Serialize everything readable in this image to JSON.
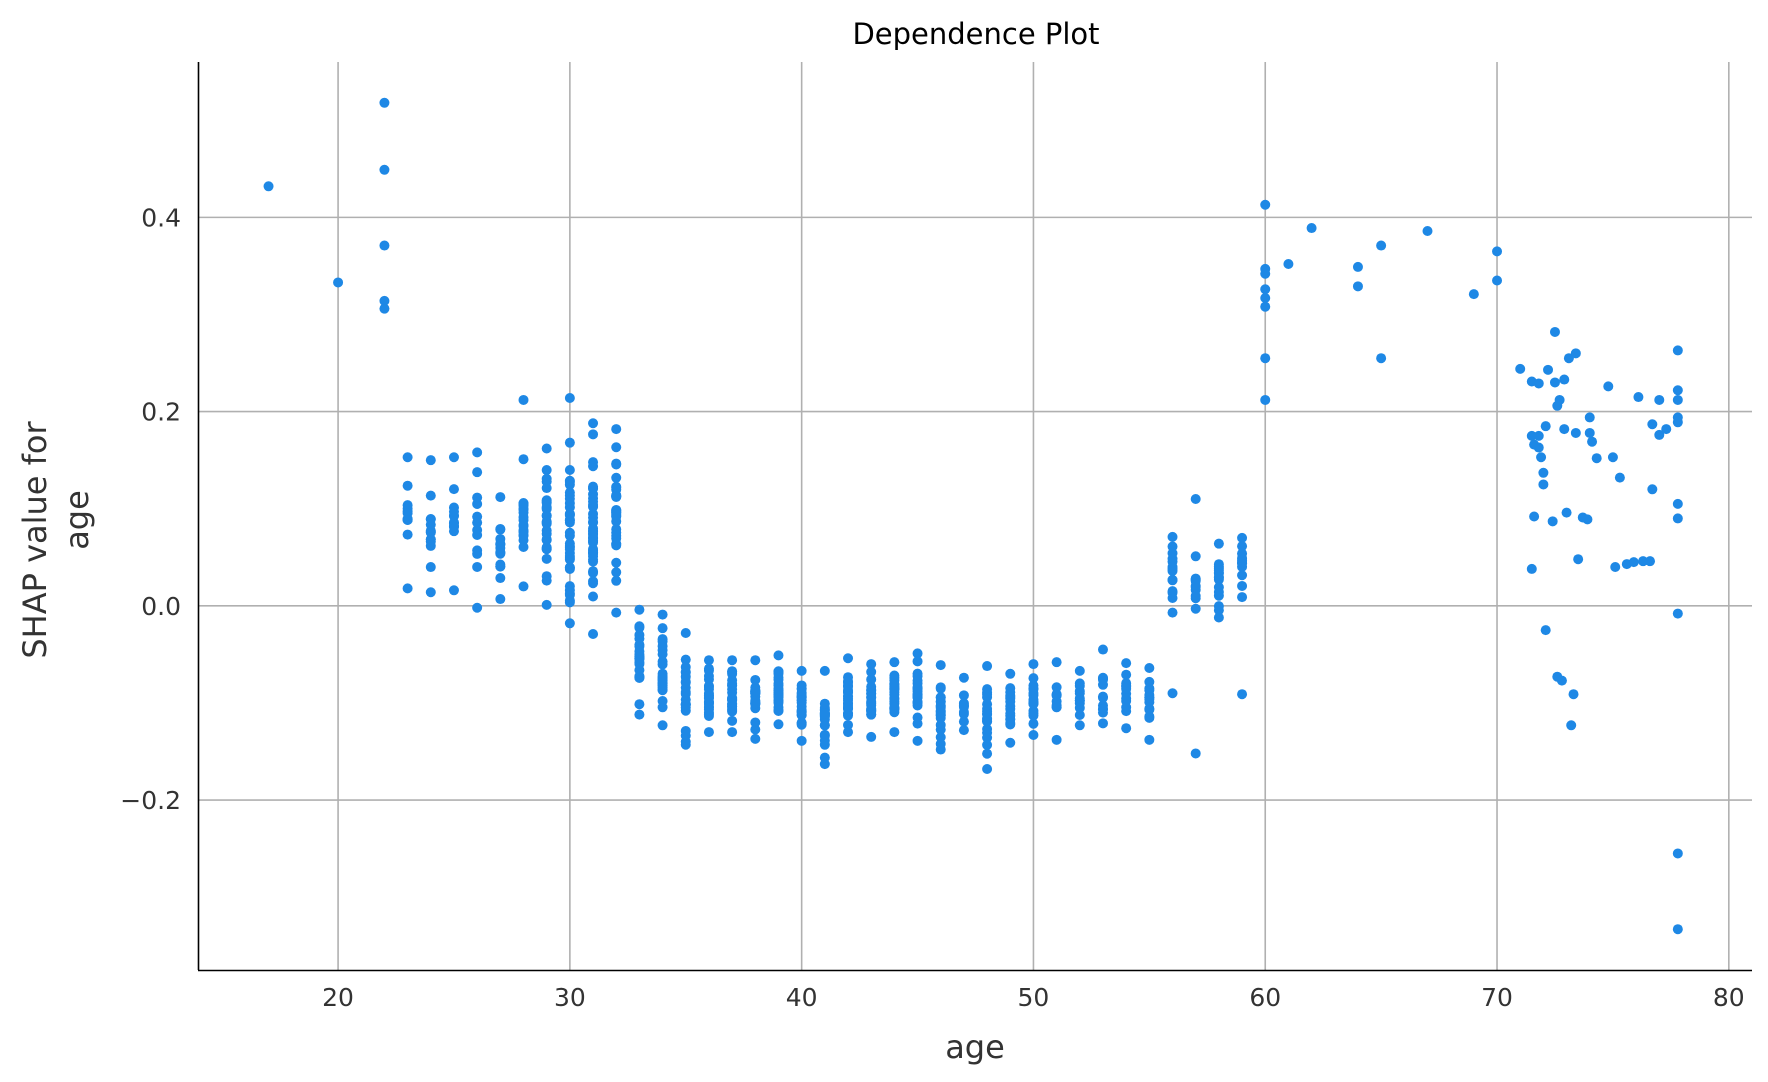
{
  "chart_data": {
    "type": "scatter",
    "title": "Dependence Plot",
    "xlabel": "age",
    "ylabel_lines": [
      "SHAP value for",
      "age"
    ],
    "xlim": [
      14,
      81
    ],
    "ylim": [
      -0.375,
      0.56
    ],
    "xticks": [
      20,
      30,
      40,
      50,
      60,
      70,
      80
    ],
    "xtick_labels": [
      "20",
      "30",
      "40",
      "50",
      "60",
      "70",
      "80"
    ],
    "yticks": [
      -0.2,
      0.0,
      0.2,
      0.4
    ],
    "ytick_labels": [
      "−0.2",
      "0.0",
      "0.2",
      "0.4"
    ],
    "grid": true,
    "point_color": "#1e88e5",
    "points_sparse": [
      [
        17,
        0.432
      ],
      [
        20,
        0.333
      ],
      [
        22,
        0.518
      ],
      [
        22,
        0.449
      ],
      [
        22,
        0.371
      ],
      [
        22,
        0.314
      ],
      [
        22,
        0.306
      ],
      [
        28,
        0.212
      ],
      [
        30,
        0.214
      ],
      [
        60,
        0.413
      ],
      [
        60,
        0.347
      ],
      [
        60,
        0.342
      ],
      [
        60,
        0.326
      ],
      [
        60,
        0.317
      ],
      [
        60,
        0.308
      ],
      [
        60,
        0.255
      ],
      [
        60,
        0.212
      ],
      [
        61,
        0.352
      ],
      [
        62,
        0.389
      ],
      [
        64,
        0.349
      ],
      [
        64,
        0.329
      ],
      [
        65,
        0.371
      ],
      [
        65,
        0.255
      ],
      [
        67,
        0.386
      ],
      [
        69,
        0.321
      ],
      [
        70,
        0.365
      ],
      [
        70,
        0.335
      ],
      [
        57,
        0.11
      ],
      [
        57,
        -0.152
      ],
      [
        56,
        -0.09
      ],
      [
        59,
        -0.091
      ],
      [
        71,
        0.244
      ],
      [
        71.5,
        0.231
      ],
      [
        71.5,
        0.175
      ],
      [
        71.6,
        0.166
      ],
      [
        71.6,
        0.092
      ],
      [
        71.5,
        0.038
      ],
      [
        71.8,
        0.229
      ],
      [
        71.8,
        0.175
      ],
      [
        71.8,
        0.163
      ],
      [
        71.9,
        0.153
      ],
      [
        72,
        0.137
      ],
      [
        72,
        0.125
      ],
      [
        72.1,
        0.185
      ],
      [
        72.2,
        0.243
      ],
      [
        72.1,
        -0.025
      ],
      [
        72.4,
        0.087
      ],
      [
        72.5,
        0.282
      ],
      [
        72.5,
        0.23
      ],
      [
        72.6,
        0.206
      ],
      [
        72.7,
        0.212
      ],
      [
        72.6,
        -0.073
      ],
      [
        72.8,
        -0.077
      ],
      [
        72.9,
        0.233
      ],
      [
        72.9,
        0.182
      ],
      [
        73.0,
        0.096
      ],
      [
        73.1,
        0.255
      ],
      [
        73.2,
        -0.123
      ],
      [
        73.3,
        -0.091
      ],
      [
        73.4,
        0.26
      ],
      [
        73.4,
        0.178
      ],
      [
        73.5,
        0.048
      ],
      [
        73.7,
        0.091
      ],
      [
        73.9,
        0.089
      ],
      [
        74,
        0.194
      ],
      [
        74,
        0.178
      ],
      [
        74.1,
        0.169
      ],
      [
        74.3,
        0.152
      ],
      [
        74.8,
        0.226
      ],
      [
        75,
        0.153
      ],
      [
        75.1,
        0.04
      ],
      [
        75.3,
        0.132
      ],
      [
        75.6,
        0.043
      ],
      [
        75.9,
        0.045
      ],
      [
        76.1,
        0.215
      ],
      [
        76.3,
        0.046
      ],
      [
        76.6,
        0.046
      ],
      [
        76.7,
        0.187
      ],
      [
        76.7,
        0.12
      ],
      [
        77,
        0.212
      ],
      [
        77,
        0.176
      ],
      [
        77.3,
        0.182
      ],
      [
        77.8,
        0.263
      ],
      [
        77.8,
        0.222
      ],
      [
        77.8,
        0.212
      ],
      [
        77.8,
        0.194
      ],
      [
        77.8,
        0.189
      ],
      [
        77.8,
        0.105
      ],
      [
        77.8,
        0.09
      ],
      [
        77.8,
        -0.008
      ],
      [
        77.8,
        -0.255
      ],
      [
        77.8,
        -0.333
      ]
    ],
    "point_columns": [
      {
        "x": 23,
        "ymin": 0.018,
        "ymax": 0.153,
        "n": 12
      },
      {
        "x": 24,
        "ymin": 0.014,
        "ymax": 0.15,
        "n": 14
      },
      {
        "x": 25,
        "ymin": 0.016,
        "ymax": 0.153,
        "n": 13
      },
      {
        "x": 26,
        "ymin": -0.002,
        "ymax": 0.158,
        "n": 12
      },
      {
        "x": 27,
        "ymin": 0.007,
        "ymax": 0.112,
        "n": 16
      },
      {
        "x": 28,
        "ymin": 0.02,
        "ymax": 0.151,
        "n": 20
      },
      {
        "x": 29,
        "ymin": 0.001,
        "ymax": 0.162,
        "n": 26
      },
      {
        "x": 30,
        "ymin": -0.018,
        "ymax": 0.168,
        "n": 36
      },
      {
        "x": 31,
        "ymin": -0.029,
        "ymax": 0.188,
        "n": 40
      },
      {
        "x": 32,
        "ymin": -0.007,
        "ymax": 0.182,
        "n": 34
      },
      {
        "x": 33,
        "ymin": -0.112,
        "ymax": -0.004,
        "n": 24
      },
      {
        "x": 34,
        "ymin": -0.123,
        "ymax": -0.009,
        "n": 26
      },
      {
        "x": 35,
        "ymin": -0.143,
        "ymax": -0.028,
        "n": 22
      },
      {
        "x": 36,
        "ymin": -0.13,
        "ymax": -0.056,
        "n": 24
      },
      {
        "x": 37,
        "ymin": -0.13,
        "ymax": -0.056,
        "n": 24
      },
      {
        "x": 38,
        "ymin": -0.137,
        "ymax": -0.056,
        "n": 26
      },
      {
        "x": 39,
        "ymin": -0.122,
        "ymax": -0.051,
        "n": 26
      },
      {
        "x": 40,
        "ymin": -0.139,
        "ymax": -0.067,
        "n": 24
      },
      {
        "x": 41,
        "ymin": -0.163,
        "ymax": -0.067,
        "n": 22
      },
      {
        "x": 42,
        "ymin": -0.13,
        "ymax": -0.054,
        "n": 24
      },
      {
        "x": 43,
        "ymin": -0.135,
        "ymax": -0.06,
        "n": 22
      },
      {
        "x": 44,
        "ymin": -0.13,
        "ymax": -0.058,
        "n": 24
      },
      {
        "x": 45,
        "ymin": -0.139,
        "ymax": -0.049,
        "n": 24
      },
      {
        "x": 46,
        "ymin": -0.148,
        "ymax": -0.061,
        "n": 22
      },
      {
        "x": 47,
        "ymin": -0.128,
        "ymax": -0.074,
        "n": 10
      },
      {
        "x": 48,
        "ymin": -0.168,
        "ymax": -0.062,
        "n": 20
      },
      {
        "x": 49,
        "ymin": -0.141,
        "ymax": -0.07,
        "n": 16
      },
      {
        "x": 50,
        "ymin": -0.133,
        "ymax": -0.06,
        "n": 18
      },
      {
        "x": 51,
        "ymin": -0.138,
        "ymax": -0.058,
        "n": 10
      },
      {
        "x": 52,
        "ymin": -0.123,
        "ymax": -0.067,
        "n": 12
      },
      {
        "x": 53,
        "ymin": -0.121,
        "ymax": -0.045,
        "n": 12
      },
      {
        "x": 54,
        "ymin": -0.126,
        "ymax": -0.059,
        "n": 12
      },
      {
        "x": 55,
        "ymin": -0.138,
        "ymax": -0.064,
        "n": 14
      },
      {
        "x": 56,
        "ymin": -0.007,
        "ymax": 0.071,
        "n": 14
      },
      {
        "x": 57,
        "ymin": -0.003,
        "ymax": 0.051,
        "n": 10
      },
      {
        "x": 58,
        "ymin": -0.012,
        "ymax": 0.064,
        "n": 16
      },
      {
        "x": 59,
        "ymin": 0.009,
        "ymax": 0.07,
        "n": 12
      }
    ]
  }
}
